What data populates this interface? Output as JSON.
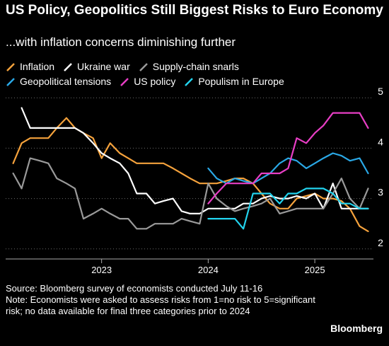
{
  "chart_data": {
    "type": "line",
    "title": "US Policy, Geopolitics Still Biggest Risks to Euro Economy",
    "subtitle": "...with inflation concerns diminishing further",
    "x_ticks": [
      {
        "label": "2023",
        "value": 2023.0
      },
      {
        "label": "2024",
        "value": 2024.0
      },
      {
        "label": "2025",
        "value": 2025.0
      }
    ],
    "y_ticks": [
      2,
      3,
      4,
      5
    ],
    "ylim": [
      1.8,
      5.2
    ],
    "xlim": [
      2022.1,
      2025.55
    ],
    "grid": "horizontal dotted",
    "legend_position": "top",
    "series": [
      {
        "name": "Inflation",
        "color": "#f5a23c",
        "x": [
          2022.17,
          2022.25,
          2022.33,
          2022.42,
          2022.5,
          2022.58,
          2022.67,
          2022.75,
          2022.83,
          2022.92,
          2023.0,
          2023.08,
          2023.17,
          2023.25,
          2023.33,
          2023.42,
          2023.5,
          2023.58,
          2023.67,
          2023.75,
          2023.83,
          2023.92,
          2024.0,
          2024.08,
          2024.17,
          2024.25,
          2024.33,
          2024.42,
          2024.5,
          2024.58,
          2024.67,
          2024.75,
          2024.83,
          2024.92,
          2025.0,
          2025.08,
          2025.17,
          2025.25,
          2025.33,
          2025.42,
          2025.5
        ],
        "values": [
          3.7,
          4.1,
          4.2,
          4.2,
          4.2,
          4.4,
          4.6,
          4.4,
          4.3,
          4.2,
          3.8,
          4.1,
          3.9,
          3.8,
          3.7,
          3.7,
          3.7,
          3.7,
          3.6,
          3.5,
          3.4,
          3.3,
          3.3,
          3.3,
          3.35,
          3.4,
          3.4,
          3.3,
          3.1,
          2.9,
          2.8,
          2.8,
          3.0,
          3.05,
          3.1,
          3.0,
          3.0,
          2.95,
          2.8,
          2.45,
          2.35
        ]
      },
      {
        "name": "Ukraine war",
        "color": "#ffffff",
        "x": [
          2022.25,
          2022.33,
          2022.42,
          2022.5,
          2022.58,
          2022.67,
          2022.75,
          2022.83,
          2022.92,
          2023.0,
          2023.08,
          2023.17,
          2023.25,
          2023.33,
          2023.42,
          2023.5,
          2023.58,
          2023.67,
          2023.75,
          2023.83,
          2023.92,
          2024.0,
          2024.08,
          2024.17,
          2024.25,
          2024.33,
          2024.42,
          2024.5,
          2024.58,
          2024.67,
          2024.75,
          2024.83,
          2024.92,
          2025.0,
          2025.08,
          2025.17,
          2025.25,
          2025.33,
          2025.42,
          2025.5
        ],
        "values": [
          4.8,
          4.4,
          4.4,
          4.4,
          4.4,
          4.4,
          4.4,
          4.3,
          4.1,
          3.9,
          3.8,
          3.7,
          3.5,
          3.1,
          3.1,
          2.9,
          2.95,
          3.0,
          2.75,
          2.7,
          2.7,
          2.8,
          2.8,
          2.8,
          2.8,
          2.9,
          2.9,
          3.0,
          3.05,
          3.0,
          3.0,
          3.05,
          3.0,
          3.1,
          2.8,
          3.3,
          2.8,
          2.8,
          2.8,
          2.8
        ]
      },
      {
        "name": "Supply-chain snarls",
        "color": "#9a9a9a",
        "x": [
          2022.17,
          2022.25,
          2022.33,
          2022.42,
          2022.5,
          2022.58,
          2022.67,
          2022.75,
          2022.83,
          2022.92,
          2023.0,
          2023.08,
          2023.17,
          2023.25,
          2023.33,
          2023.42,
          2023.5,
          2023.58,
          2023.67,
          2023.75,
          2023.83,
          2023.92,
          2024.0,
          2024.08,
          2024.17,
          2024.25,
          2024.33,
          2024.42,
          2024.5,
          2024.58,
          2024.67,
          2024.75,
          2024.83,
          2024.92,
          2025.0,
          2025.08,
          2025.17,
          2025.25,
          2025.33,
          2025.42,
          2025.5
        ],
        "values": [
          3.5,
          3.2,
          3.8,
          3.75,
          3.7,
          3.4,
          3.3,
          3.2,
          2.6,
          2.7,
          2.8,
          2.7,
          2.6,
          2.6,
          2.4,
          2.4,
          2.5,
          2.5,
          2.5,
          2.6,
          2.55,
          2.5,
          3.3,
          3.0,
          2.85,
          2.75,
          2.8,
          2.85,
          2.9,
          3.0,
          2.7,
          2.75,
          2.8,
          2.8,
          2.8,
          2.8,
          3.1,
          3.4,
          3.0,
          2.8,
          3.2
        ]
      },
      {
        "name": "Geopolitical tensions",
        "color": "#2aa8e6",
        "x": [
          2024.0,
          2024.08,
          2024.17,
          2024.25,
          2024.33,
          2024.42,
          2024.5,
          2024.58,
          2024.67,
          2024.75,
          2024.83,
          2024.92,
          2025.0,
          2025.08,
          2025.17,
          2025.25,
          2025.33,
          2025.42,
          2025.5
        ],
        "values": [
          3.6,
          3.4,
          3.3,
          3.4,
          3.35,
          3.3,
          3.4,
          3.5,
          3.7,
          3.8,
          3.75,
          3.6,
          3.7,
          3.8,
          3.9,
          3.85,
          3.75,
          3.8,
          3.5
        ]
      },
      {
        "name": "US policy",
        "color": "#e83ec5",
        "x": [
          2024.0,
          2024.08,
          2024.17,
          2024.25,
          2024.33,
          2024.42,
          2024.5,
          2024.58,
          2024.67,
          2024.75,
          2024.83,
          2024.92,
          2025.0,
          2025.08,
          2025.17,
          2025.25,
          2025.33,
          2025.42,
          2025.5
        ],
        "values": [
          2.9,
          3.1,
          3.3,
          3.3,
          3.3,
          3.3,
          3.5,
          3.5,
          3.5,
          3.6,
          4.2,
          4.1,
          4.3,
          4.45,
          4.7,
          4.7,
          4.7,
          4.7,
          4.4
        ]
      },
      {
        "name": "Populism in Europe",
        "color": "#22d3ee",
        "x": [
          2024.0,
          2024.08,
          2024.17,
          2024.25,
          2024.33,
          2024.42,
          2024.5,
          2024.58,
          2024.67,
          2024.75,
          2024.83,
          2024.92,
          2025.0,
          2025.08,
          2025.17,
          2025.25,
          2025.33,
          2025.42,
          2025.5
        ],
        "values": [
          2.6,
          2.6,
          2.6,
          2.6,
          2.4,
          3.1,
          3.1,
          3.1,
          2.9,
          3.1,
          3.1,
          3.2,
          3.2,
          3.2,
          3.1,
          2.9,
          2.9,
          2.8,
          2.8
        ]
      }
    ]
  },
  "legend": [
    [
      "Inflation",
      "Ukraine war",
      "Supply-chain snarls"
    ],
    [
      "Geopolitical tensions",
      "US policy",
      "Populism in Europe"
    ]
  ],
  "footer": {
    "source": "Source: Bloomberg survey of economists conducted July 11-16",
    "note": "Note: Economists were asked to assess risks from 1=no risk to 5=significant risk; no data available for final three categories prior to 2024"
  },
  "brand": "Bloomberg"
}
